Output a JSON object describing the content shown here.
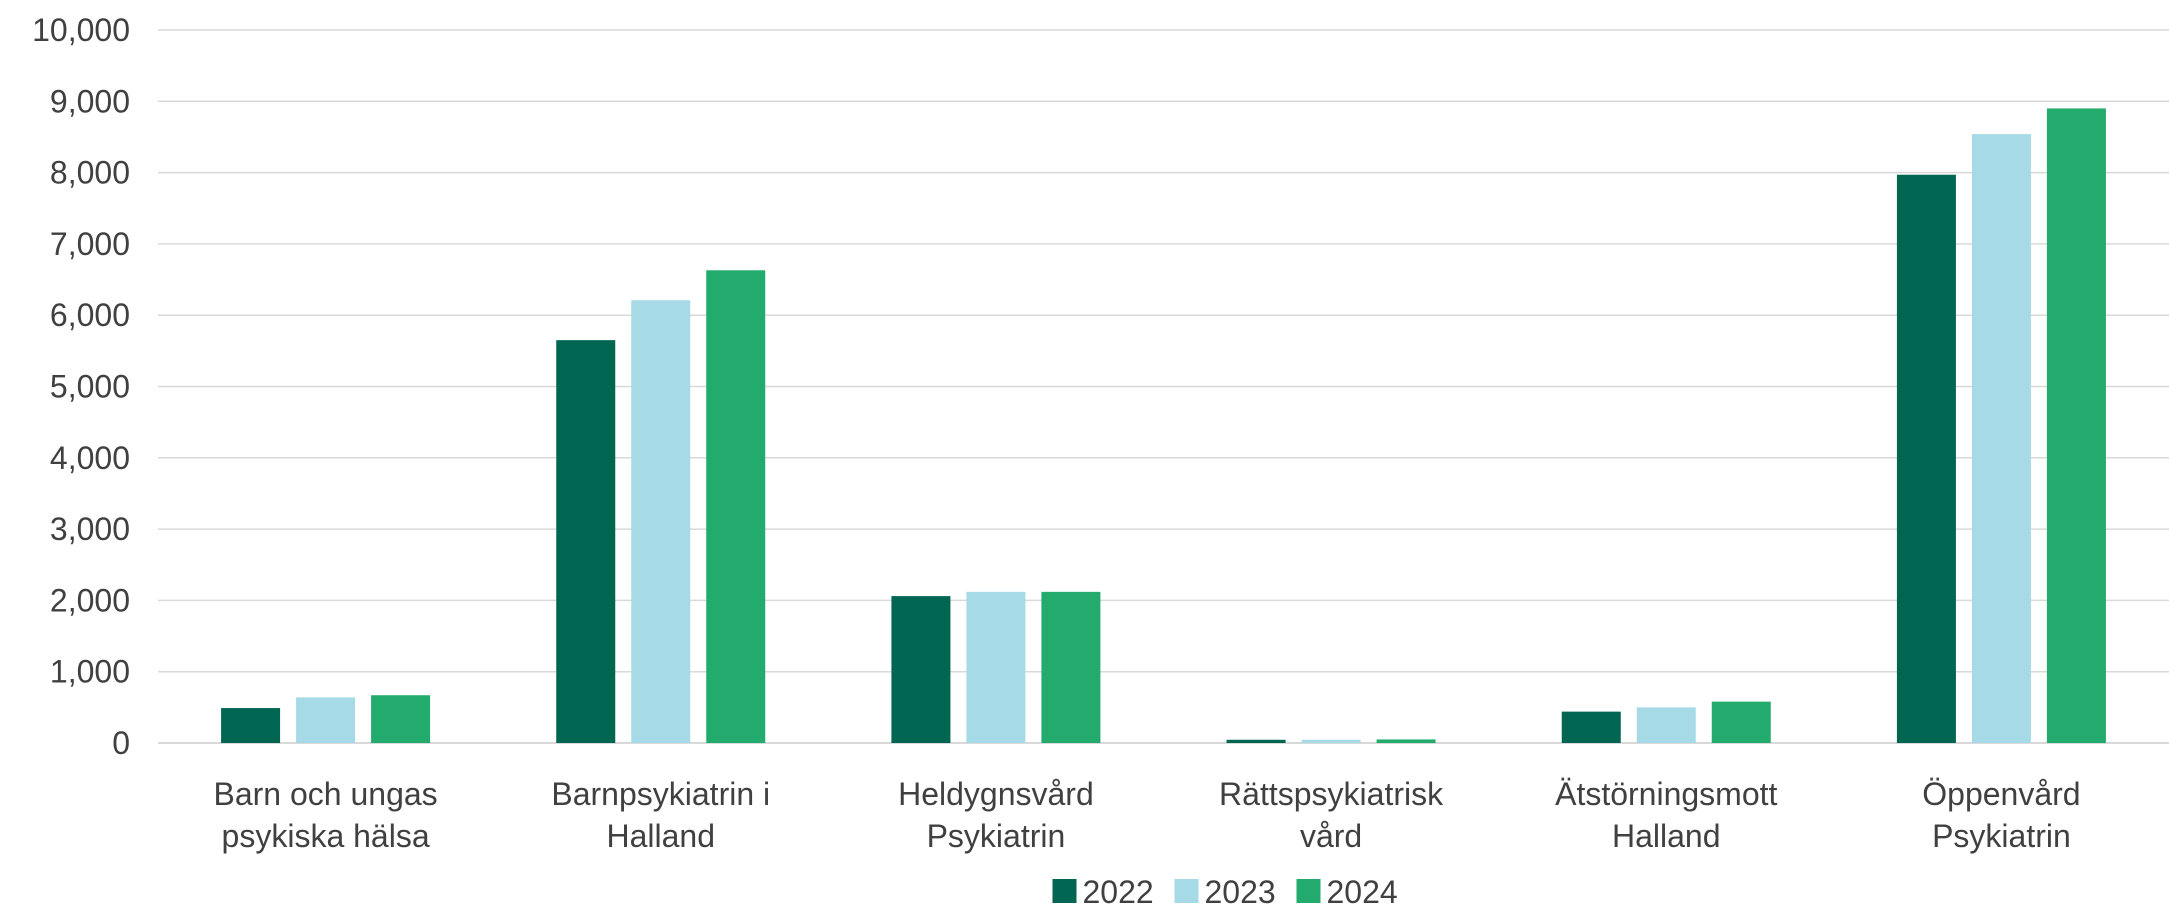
{
  "chart_data": {
    "type": "bar",
    "title": "",
    "xlabel": "",
    "ylabel": "",
    "ylim": [
      0,
      10000
    ],
    "yticks": [
      0,
      1000,
      2000,
      3000,
      4000,
      5000,
      6000,
      7000,
      8000,
      9000,
      10000
    ],
    "ytick_labels": [
      "0",
      "1,000",
      "2,000",
      "3,000",
      "4,000",
      "5,000",
      "6,000",
      "7,000",
      "8,000",
      "9,000",
      "10,000"
    ],
    "grid": "horizontal",
    "legend_position": "bottom",
    "categories": [
      [
        "Barn och ungas",
        "psykiska hälsa"
      ],
      [
        "Barnpsykiatrin i",
        "Halland"
      ],
      [
        "Heldygnsvård",
        "Psykiatrin"
      ],
      [
        "Rättspsykiatrisk",
        "vård"
      ],
      [
        "Ätstörningsmott",
        "Halland"
      ],
      [
        "Öppenvård",
        "Psykiatrin"
      ]
    ],
    "series": [
      {
        "name": "2022",
        "color": "#006652",
        "values": [
          490,
          5650,
          2060,
          45,
          440,
          7970
        ]
      },
      {
        "name": "2023",
        "color": "#a6dae6",
        "values": [
          640,
          6210,
          2120,
          45,
          500,
          8540
        ]
      },
      {
        "name": "2024",
        "color": "#22ab6c",
        "values": [
          670,
          6630,
          2120,
          50,
          580,
          8900
        ]
      }
    ]
  }
}
